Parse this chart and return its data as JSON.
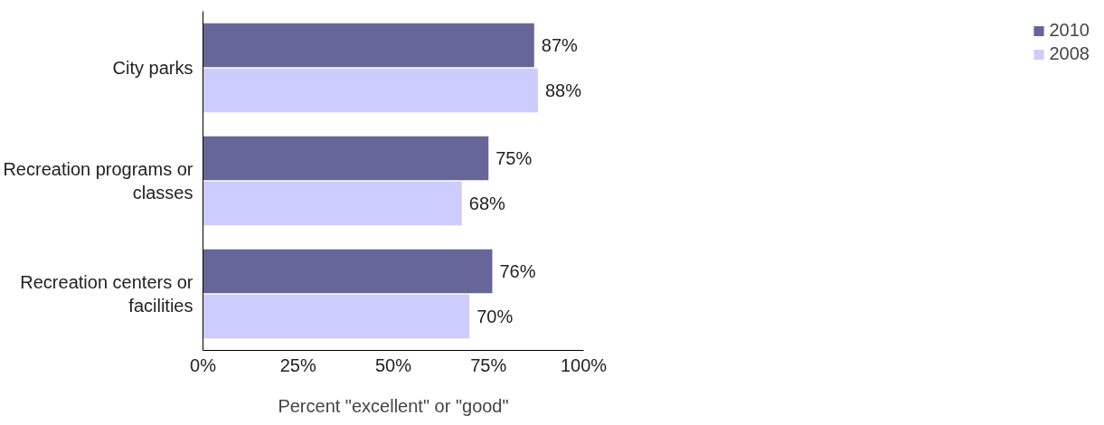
{
  "chart_data": {
    "type": "bar",
    "orientation": "horizontal",
    "categories": [
      "City parks",
      "Recreation programs or classes",
      "Recreation centers or facilities"
    ],
    "series": [
      {
        "name": "2010",
        "color": "#666699",
        "values": [
          87,
          75,
          76
        ],
        "value_labels": [
          "87%",
          "75%",
          "76%"
        ]
      },
      {
        "name": "2008",
        "color": "#ccccff",
        "values": [
          88,
          68,
          70
        ],
        "value_labels": [
          "88%",
          "68%",
          "70%"
        ]
      }
    ],
    "xlabel": "Percent \"excellent\" or \"good\"",
    "xlim": [
      0,
      100
    ],
    "xticks": [
      {
        "value": 0,
        "label": "0%"
      },
      {
        "value": 25,
        "label": "25%"
      },
      {
        "value": 50,
        "label": "50%"
      },
      {
        "value": 75,
        "label": "75%"
      },
      {
        "value": 100,
        "label": "100%"
      }
    ],
    "legend": "top right",
    "grid": false
  }
}
